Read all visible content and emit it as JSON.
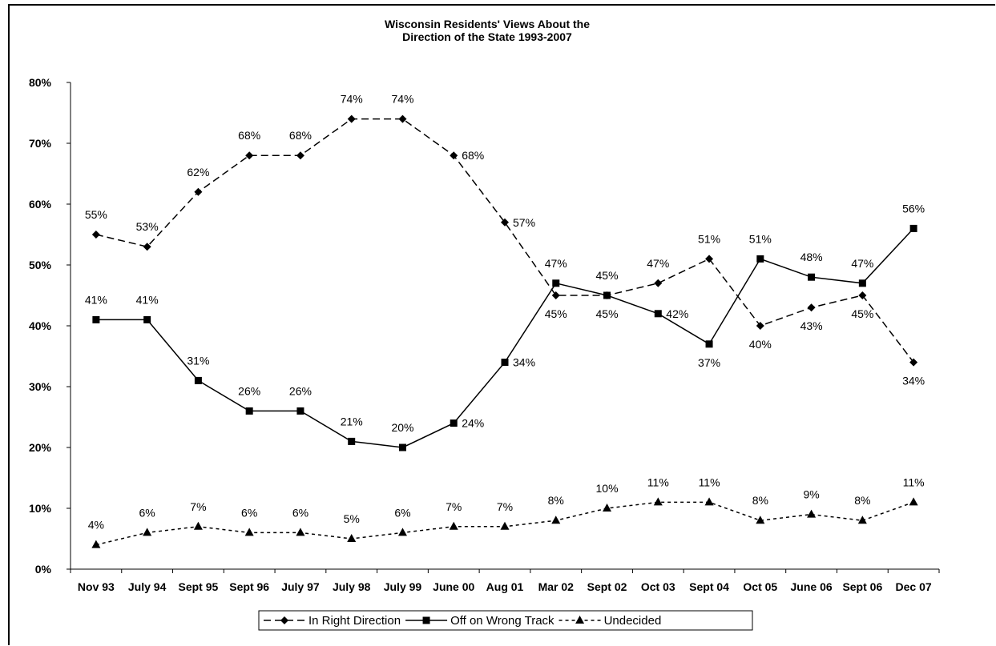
{
  "chart_data": {
    "type": "line",
    "title": [
      "Wisconsin Residents' Views About the",
      "Direction of the State 1993-2007"
    ],
    "categories": [
      "Nov 93",
      "July 94",
      "Sept 95",
      "Sept 96",
      "July 97",
      "July 98",
      "July 99",
      "June 00",
      "Aug 01",
      "Mar 02",
      "Sept 02",
      "Oct 03",
      "Sept 04",
      "Oct 05",
      "June 06",
      "Sept 06",
      "Dec 07"
    ],
    "ylim": [
      0,
      80
    ],
    "yticks": [
      "0%",
      "10%",
      "20%",
      "30%",
      "40%",
      "50%",
      "60%",
      "70%",
      "80%"
    ],
    "grid": false,
    "legend_position": "bottom",
    "series": [
      {
        "name": "In Right Direction",
        "line": "dashed",
        "marker": "diamond",
        "values": [
          55,
          53,
          62,
          68,
          68,
          74,
          74,
          68,
          57,
          45,
          45,
          47,
          51,
          40,
          43,
          45,
          34
        ],
        "labels": [
          "55%",
          "53%",
          "62%",
          "68%",
          "68%",
          "74%",
          "74%",
          "68%",
          "57%",
          "45%",
          "45%",
          "47%",
          "51%",
          "40%",
          "43%",
          "45%",
          "34%"
        ]
      },
      {
        "name": "Off on Wrong Track",
        "line": "solid",
        "marker": "square",
        "values": [
          41,
          41,
          31,
          26,
          26,
          21,
          20,
          24,
          34,
          47,
          45,
          42,
          37,
          51,
          48,
          47,
          56
        ],
        "labels": [
          "41%",
          "41%",
          "31%",
          "26%",
          "26%",
          "21%",
          "20%",
          "24%",
          "34%",
          "47%",
          "45%",
          "42%",
          "37%",
          "51%",
          "48%",
          "47%",
          "56%"
        ]
      },
      {
        "name": "Undecided",
        "line": "dotted",
        "marker": "triangle",
        "values": [
          4,
          6,
          7,
          6,
          6,
          5,
          6,
          7,
          7,
          8,
          10,
          11,
          11,
          8,
          9,
          8,
          11
        ],
        "labels": [
          "4%",
          "6%",
          "7%",
          "6%",
          "6%",
          "5%",
          "6%",
          "7%",
          "7%",
          "8%",
          "10%",
          "11%",
          "11%",
          "8%",
          "9%",
          "8%",
          "11%"
        ]
      }
    ]
  }
}
